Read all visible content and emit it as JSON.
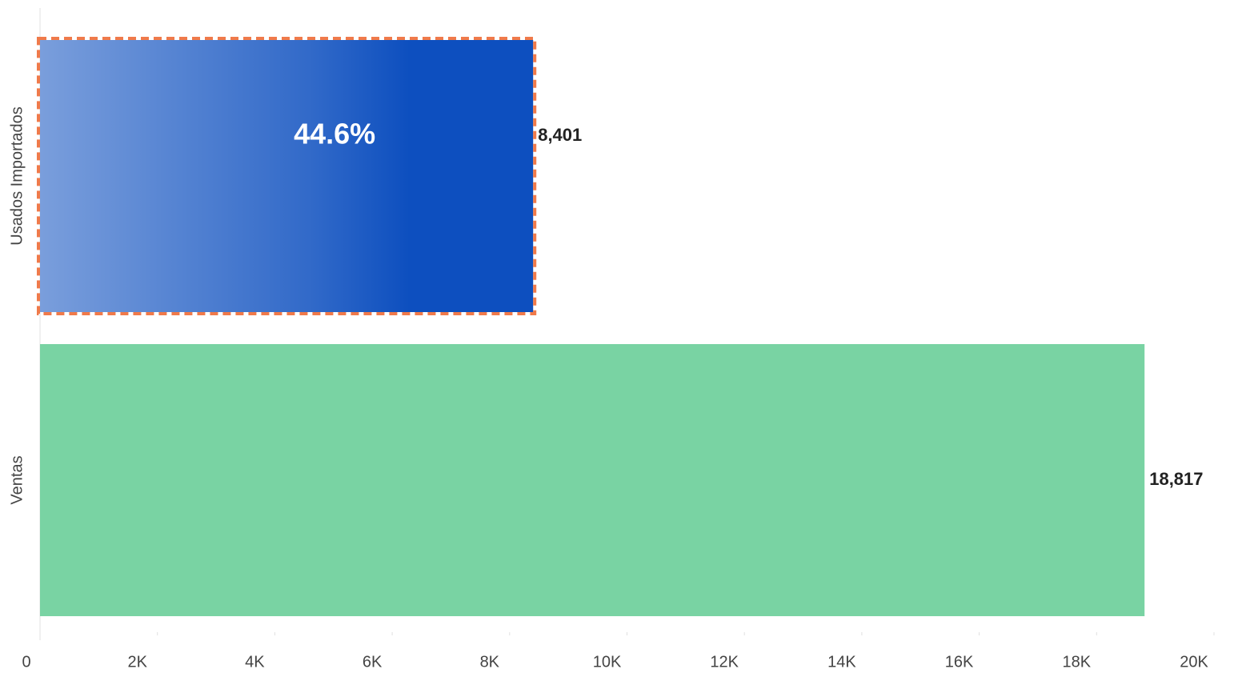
{
  "chart_data": {
    "type": "bar",
    "orientation": "horizontal",
    "categories": [
      "Usados Importados",
      "Ventas"
    ],
    "values": [
      8401,
      18817
    ],
    "value_labels": [
      "8,401",
      "18,817"
    ],
    "colors": [
      "#0d4fbf",
      "#79d3a3"
    ],
    "annotation": "44.6%",
    "xlim": [
      0,
      20000
    ],
    "xticks": [
      0,
      {
        "value": 2000,
        "label": "2K"
      },
      {
        "value": 4000,
        "label": "4K"
      },
      {
        "value": 6000,
        "label": "6K"
      },
      {
        "value": 8000,
        "label": "8K"
      },
      {
        "value": 10000,
        "label": "10K"
      },
      {
        "value": 12000,
        "label": "12K"
      },
      {
        "value": 14000,
        "label": "14K"
      },
      {
        "value": 16000,
        "label": "16K"
      },
      {
        "value": 18000,
        "label": "18K"
      },
      {
        "value": 20000,
        "label": "20K"
      }
    ],
    "grid": false
  }
}
